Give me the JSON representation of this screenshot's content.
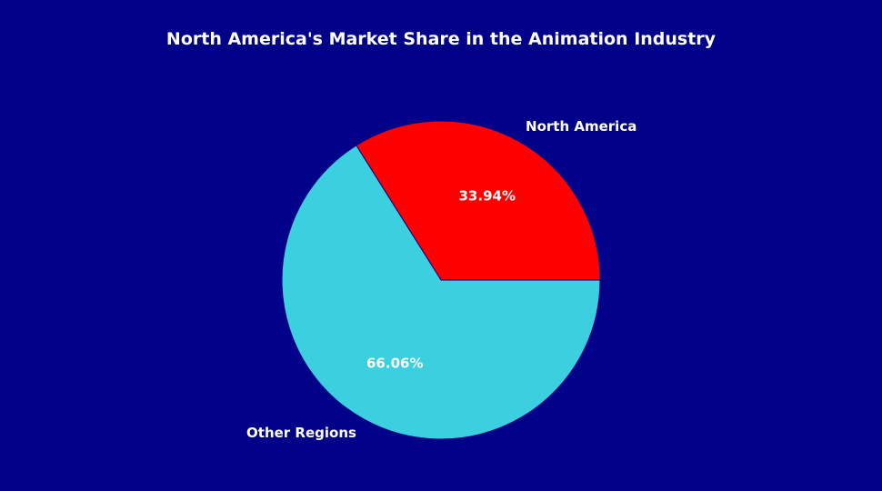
{
  "chart_data": {
    "type": "pie",
    "title": "North America's Market Share in the Animation Industry",
    "slices": [
      {
        "label": "North America",
        "value": 33.94,
        "pct_text": "33.94%",
        "color": "#ff0000"
      },
      {
        "label": "Other Regions",
        "value": 66.06,
        "pct_text": "66.06%",
        "color": "#3bcfe0"
      }
    ],
    "start_angle": "3 o'clock",
    "direction": "counterclockwise",
    "edge_color": "#000088",
    "background": "#000088"
  }
}
